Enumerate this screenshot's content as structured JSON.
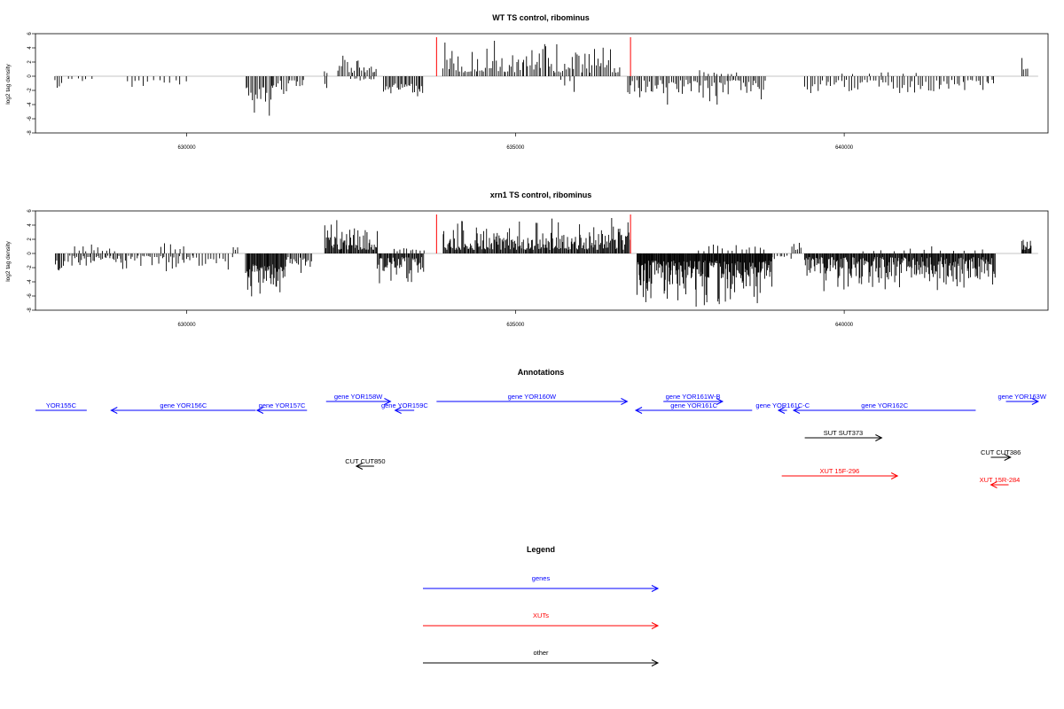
{
  "chart_data": [
    {
      "type": "bar",
      "title": "WT TS control, ribominus",
      "ylabel": "log2 tag density",
      "xlim": [
        627700,
        643100
      ],
      "ylim": [
        -8,
        6
      ],
      "yticks": [
        -8,
        -6,
        -4,
        -2,
        0,
        2,
        4,
        6
      ],
      "xticks": [
        630000,
        635000,
        640000
      ],
      "xticklabels": [
        "630000",
        "635000",
        "640000"
      ],
      "baseline_color": "#b3b3b3",
      "bar_color": "#000000",
      "marker_color": "#ff0000",
      "markers": [
        {
          "x": 633800,
          "y": 5.5
        },
        {
          "x": 636750,
          "y": 5.5
        }
      ],
      "segments": [
        {
          "from": 628000,
          "to": 628100,
          "step": 30,
          "sign": -1,
          "min": 0.5,
          "max": 3.0
        },
        {
          "from": 628200,
          "to": 628600,
          "step": 70,
          "sign": -1,
          "min": 0.3,
          "max": 1.5
        },
        {
          "from": 629100,
          "to": 629400,
          "step": 60,
          "sign": -1,
          "min": 0.5,
          "max": 2.5
        },
        {
          "from": 629500,
          "to": 630000,
          "step": 80,
          "sign": -1,
          "min": 0.5,
          "max": 2.8
        },
        {
          "from": 630900,
          "to": 631300,
          "step": 25,
          "sign": -1,
          "min": 1.5,
          "max": 6.3
        },
        {
          "from": 631300,
          "to": 631800,
          "step": 30,
          "sign": -1,
          "min": 0.5,
          "max": 2.5
        },
        {
          "from": 632100,
          "to": 632150,
          "step": 30,
          "sign": 1,
          "min": 0.3,
          "max": 1.0
        },
        {
          "from": 632100,
          "to": 632150,
          "step": 30,
          "sign": -1,
          "min": 0.5,
          "max": 2.2
        },
        {
          "from": 632300,
          "to": 632900,
          "step": 28,
          "sign": 1,
          "min": 0.5,
          "max": 3.5
        },
        {
          "from": 632500,
          "to": 632900,
          "step": 45,
          "sign": -1,
          "min": 0.3,
          "max": 1.5
        },
        {
          "from": 633000,
          "to": 633600,
          "step": 22,
          "sign": -1,
          "min": 1.0,
          "max": 3.8
        },
        {
          "from": 633900,
          "to": 636600,
          "step": 28,
          "sign": 1,
          "min": 0.5,
          "max": 5.0
        },
        {
          "from": 635700,
          "to": 635900,
          "step": 60,
          "sign": -1,
          "min": 0.5,
          "max": 2.5
        },
        {
          "from": 636700,
          "to": 638800,
          "step": 28,
          "sign": -1,
          "min": 0.5,
          "max": 4.0
        },
        {
          "from": 637800,
          "to": 638400,
          "step": 70,
          "sign": 1,
          "min": 0.3,
          "max": 1.0
        },
        {
          "from": 639400,
          "to": 642300,
          "step": 40,
          "sign": -1,
          "min": 0.5,
          "max": 3.2
        },
        {
          "from": 640000,
          "to": 641200,
          "step": 180,
          "sign": 1,
          "min": 0.3,
          "max": 1.0
        },
        {
          "from": 642700,
          "to": 642800,
          "step": 30,
          "sign": 1,
          "min": 0.5,
          "max": 3.2
        }
      ]
    },
    {
      "type": "bar",
      "title": "xrn1 TS control, ribominus",
      "ylabel": "log2 tag density",
      "xlim": [
        627700,
        643100
      ],
      "ylim": [
        -8,
        6
      ],
      "yticks": [
        -8,
        -6,
        -4,
        -2,
        0,
        2,
        4,
        6
      ],
      "xticks": [
        630000,
        635000,
        640000
      ],
      "xticklabels": [
        "630000",
        "635000",
        "640000"
      ],
      "baseline_color": "#b3b3b3",
      "bar_color": "#000000",
      "marker_color": "#ff0000",
      "markers": [
        {
          "x": 633800,
          "y": 5.5
        },
        {
          "x": 636750,
          "y": 5.5
        }
      ],
      "segments": [
        {
          "from": 628000,
          "to": 628150,
          "step": 20,
          "sign": -1,
          "min": 1.0,
          "max": 3.2
        },
        {
          "from": 628200,
          "to": 629000,
          "step": 25,
          "sign": -1,
          "min": 0.3,
          "max": 2.0
        },
        {
          "from": 628300,
          "to": 628900,
          "step": 60,
          "sign": 1,
          "min": 0.3,
          "max": 1.6
        },
        {
          "from": 629000,
          "to": 630100,
          "step": 30,
          "sign": -1,
          "min": 0.3,
          "max": 2.5
        },
        {
          "from": 629600,
          "to": 630000,
          "step": 70,
          "sign": 1,
          "min": 0.5,
          "max": 2.2
        },
        {
          "from": 630100,
          "to": 630700,
          "step": 45,
          "sign": -1,
          "min": 0.5,
          "max": 3.0
        },
        {
          "from": 630700,
          "to": 630800,
          "step": 40,
          "sign": 1,
          "min": 0.5,
          "max": 1.5
        },
        {
          "from": 630900,
          "to": 631500,
          "step": 12,
          "sign": -1,
          "min": 1.5,
          "max": 7.0
        },
        {
          "from": 631500,
          "to": 631900,
          "step": 22,
          "sign": -1,
          "min": 0.5,
          "max": 3.0
        },
        {
          "from": 632100,
          "to": 632900,
          "step": 14,
          "sign": 1,
          "min": 0.5,
          "max": 4.7
        },
        {
          "from": 632900,
          "to": 633600,
          "step": 14,
          "sign": -1,
          "min": 0.5,
          "max": 4.2
        },
        {
          "from": 633150,
          "to": 633600,
          "step": 50,
          "sign": 1,
          "min": 0.3,
          "max": 1.0
        },
        {
          "from": 633900,
          "to": 636750,
          "step": 14,
          "sign": 1,
          "min": 0.5,
          "max": 5.3
        },
        {
          "from": 636850,
          "to": 638900,
          "step": 10,
          "sign": -1,
          "min": 1.0,
          "max": 7.5
        },
        {
          "from": 637800,
          "to": 638800,
          "step": 70,
          "sign": 1,
          "min": 0.3,
          "max": 2.5
        },
        {
          "from": 638900,
          "to": 639200,
          "step": 40,
          "sign": -1,
          "min": 0.3,
          "max": 1.0
        },
        {
          "from": 639200,
          "to": 639350,
          "step": 30,
          "sign": 1,
          "min": 0.5,
          "max": 2.8
        },
        {
          "from": 639400,
          "to": 642300,
          "step": 12,
          "sign": -1,
          "min": 0.5,
          "max": 5.5
        },
        {
          "from": 640300,
          "to": 642100,
          "step": 150,
          "sign": 1,
          "min": 0.3,
          "max": 1.0
        },
        {
          "from": 642700,
          "to": 642850,
          "step": 12,
          "sign": 1,
          "min": 0.5,
          "max": 3.0
        }
      ]
    }
  ],
  "annotations": {
    "title": "Annotations",
    "features": [
      {
        "label": "YOR155C",
        "color": "#0000ff",
        "start": 627700,
        "end": 628480,
        "dir": "right",
        "head": false,
        "row": 1
      },
      {
        "label": "gene YOR156C",
        "color": "#0000ff",
        "start": 628850,
        "end": 631050,
        "dir": "left",
        "row": 1
      },
      {
        "label": "gene YOR157C",
        "color": "#0000ff",
        "start": 631070,
        "end": 631830,
        "dir": "left",
        "row": 1
      },
      {
        "label": "gene YOR158W",
        "color": "#0000ff",
        "start": 632120,
        "end": 633100,
        "dir": "right",
        "row": 0
      },
      {
        "label": "gene YOR159C",
        "color": "#0000ff",
        "start": 633170,
        "end": 633460,
        "dir": "left",
        "row": 1
      },
      {
        "label": "gene YOR160W",
        "color": "#0000ff",
        "start": 633800,
        "end": 636700,
        "dir": "right",
        "row": 0
      },
      {
        "label": "gene YOR161W-B",
        "color": "#0000ff",
        "start": 637250,
        "end": 638150,
        "dir": "right",
        "row": 0
      },
      {
        "label": "gene YOR161C",
        "color": "#0000ff",
        "start": 636830,
        "end": 638600,
        "dir": "left",
        "row": 1
      },
      {
        "label": "gene YOR161C-C",
        "color": "#0000ff",
        "start": 639000,
        "end": 639130,
        "dir": "left",
        "row": 1
      },
      {
        "label": "gene YOR162C",
        "color": "#0000ff",
        "start": 639230,
        "end": 642000,
        "dir": "left",
        "row": 1
      },
      {
        "label": "gene YOR163W",
        "color": "#0000ff",
        "start": 642460,
        "end": 642950,
        "dir": "right",
        "row": 0
      },
      {
        "label": "SUT SUT373",
        "color": "#000000",
        "start": 639400,
        "end": 640570,
        "dir": "right",
        "row": 3
      },
      {
        "label": "CUT CUT850",
        "color": "#000000",
        "start": 632580,
        "end": 632850,
        "dir": "left",
        "row": 5
      },
      {
        "label": "CUT CUT386",
        "color": "#000000",
        "start": 642230,
        "end": 642530,
        "dir": "right",
        "row": 4
      },
      {
        "label": "XUT 15F-296",
        "color": "#ff0000",
        "start": 639050,
        "end": 640810,
        "dir": "right",
        "row": 6
      },
      {
        "label": "XUT 15R-284",
        "color": "#ff0000",
        "start": 642230,
        "end": 642500,
        "dir": "left",
        "row": 7
      }
    ],
    "legend": {
      "title": "Legend",
      "items": [
        {
          "label": "genes",
          "color": "#0000ff"
        },
        {
          "label": "XUTs",
          "color": "#ff0000"
        },
        {
          "label": "other",
          "color": "#000000"
        }
      ]
    }
  }
}
